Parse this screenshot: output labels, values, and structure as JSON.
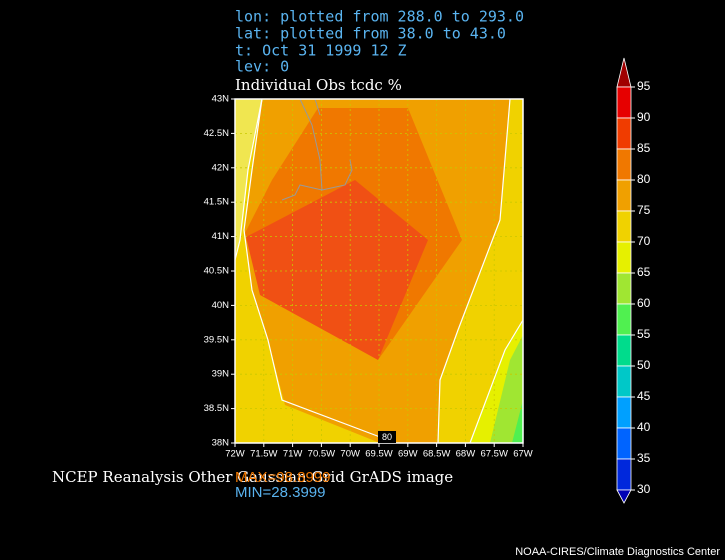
{
  "header": {
    "lines": [
      "lon: plotted from 288.0 to 293.0",
      "lat: plotted from 38.0 to 43.0",
      "t: Oct 31 1999 12 Z",
      "lev: 0"
    ],
    "title": "Individual Obs tcdc %"
  },
  "map": {
    "lon_ticks": [
      "72W",
      "71.5W",
      "71W",
      "70.5W",
      "70W",
      "69.5W",
      "69W",
      "68.5W",
      "68W",
      "67.5W",
      "67W"
    ],
    "lat_ticks": [
      "38N",
      "38.5N",
      "39N",
      "39.5N",
      "40N",
      "40.5N",
      "41N",
      "41.5N",
      "42N",
      "42.5N",
      "43N"
    ],
    "contour_label": "80"
  },
  "colorbar": {
    "levels": [
      95,
      90,
      85,
      80,
      75,
      70,
      65,
      60,
      55,
      50,
      45,
      40,
      35,
      30
    ],
    "colors": [
      "#a00000",
      "#e60000",
      "#f03c00",
      "#f07800",
      "#f0a000",
      "#f0d200",
      "#e6f000",
      "#a0e632",
      "#50f050",
      "#00dc8c",
      "#00c8c8",
      "#00a0ff",
      "#0064ff",
      "#0028dc",
      "#0000b4"
    ]
  },
  "footer": {
    "caption": "NCEP Reanalysis Other Gaussian Grid GrADS image",
    "max": "MAX=98.8999",
    "min": "MIN=28.3999",
    "credit": "NOAA-CIRES/Climate Diagnostics Center"
  }
}
